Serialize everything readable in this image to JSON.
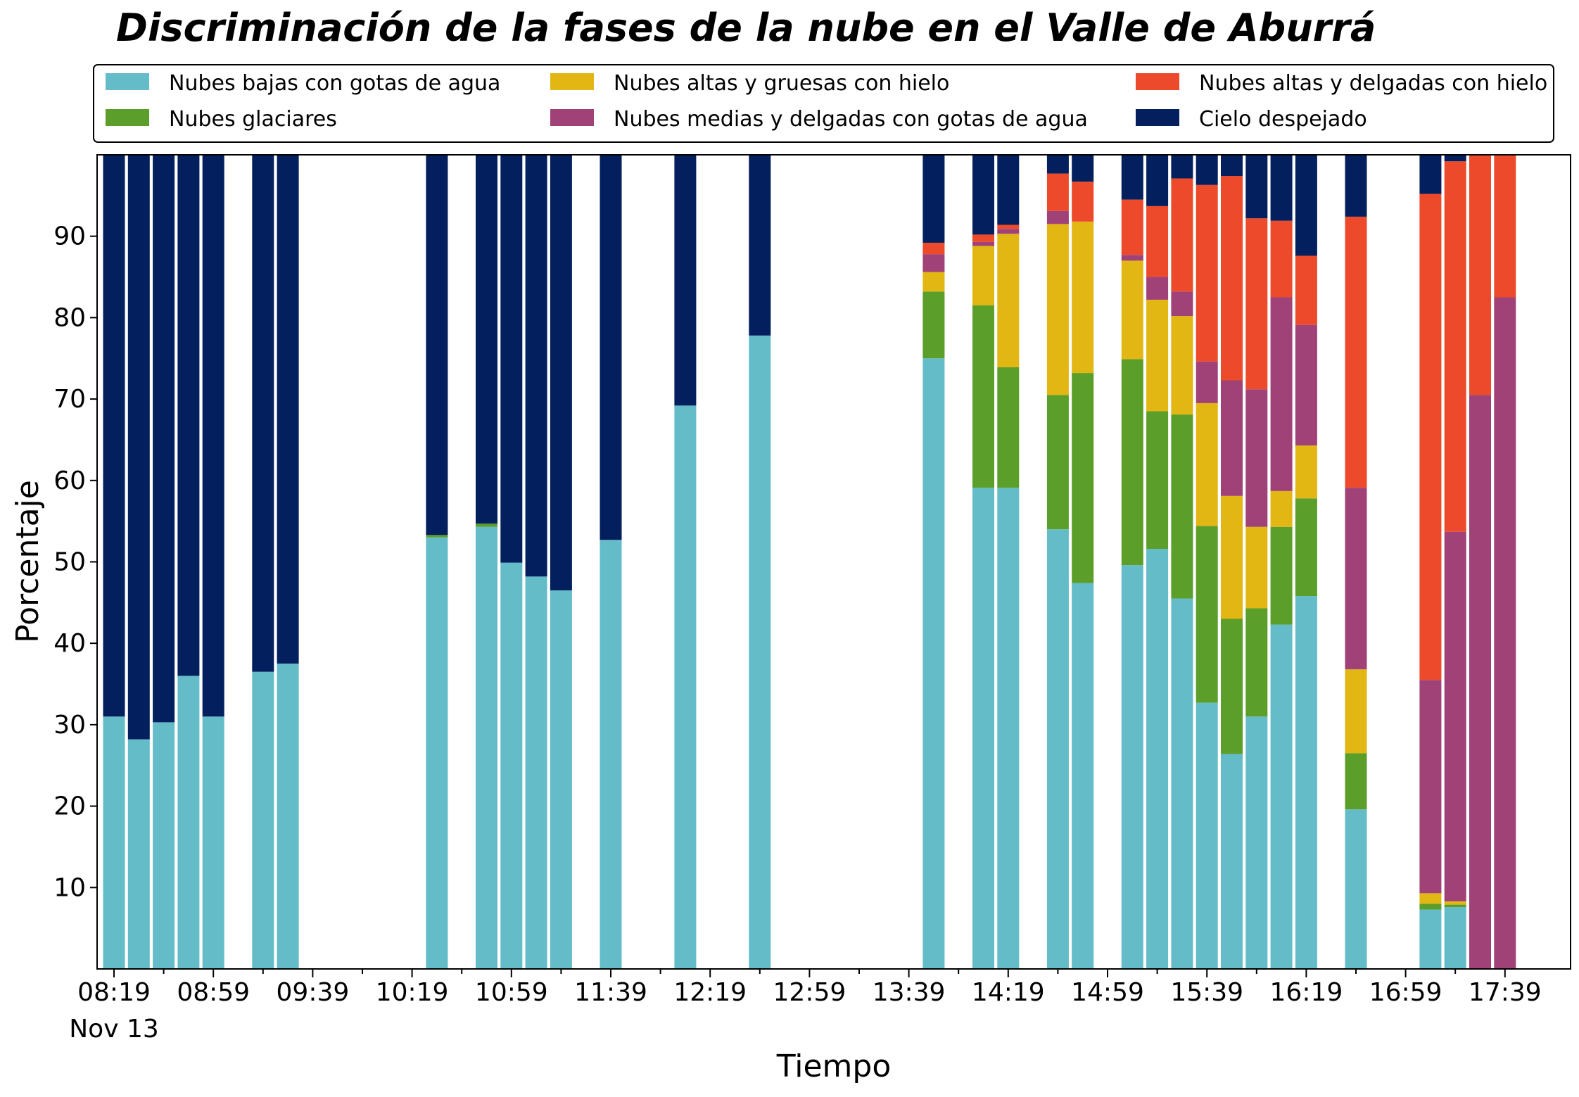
{
  "chart_data": {
    "type": "bar",
    "stacked": true,
    "title": "Discriminación de la fases de la nube en el Valle de Aburrá",
    "xlabel": "Tiempo",
    "ylabel": "Porcentaje",
    "ylim": [
      0,
      100
    ],
    "yticks": [
      10,
      20,
      30,
      40,
      50,
      60,
      70,
      80,
      90
    ],
    "x_start": "08:19",
    "bar_interval_minutes": 10,
    "x_end": "17:49",
    "xtick_labels": [
      "08:19",
      "08:59",
      "09:39",
      "10:19",
      "10:59",
      "11:39",
      "12:19",
      "12:59",
      "13:39",
      "14:19",
      "14:59",
      "15:39",
      "16:19",
      "16:59",
      "17:39"
    ],
    "date_label": "Nov 13",
    "grid": false,
    "legend_position": "top",
    "series": [
      {
        "name": "Nubes bajas con gotas de agua",
        "color": "#64bcc8"
      },
      {
        "name": "Nubes glaciares",
        "color": "#5b9e2a"
      },
      {
        "name": "Nubes altas y gruesas con hielo",
        "color": "#e2b613"
      },
      {
        "name": "Nubes medias y delgadas con gotas de agua",
        "color": "#a04278"
      },
      {
        "name": "Nubes altas y delgadas con hielo",
        "color": "#ec4a2a"
      },
      {
        "name": "Cielo despejado",
        "color": "#041f5e"
      }
    ],
    "bars": [
      {
        "time": "08:19",
        "values": [
          31,
          0,
          0,
          0,
          0,
          69
        ]
      },
      {
        "time": "08:29",
        "values": [
          28.2,
          0,
          0,
          0,
          0,
          71.8
        ]
      },
      {
        "time": "08:39",
        "values": [
          30.3,
          0,
          0,
          0,
          0,
          69.7
        ]
      },
      {
        "time": "08:49",
        "values": [
          36,
          0,
          0,
          0,
          0,
          64
        ]
      },
      {
        "time": "08:59",
        "values": [
          31,
          0,
          0,
          0,
          0,
          69
        ]
      },
      {
        "time": "09:19",
        "values": [
          36.5,
          0,
          0,
          0,
          0,
          63.5
        ]
      },
      {
        "time": "09:29",
        "values": [
          37.5,
          0,
          0,
          0,
          0,
          62.5
        ]
      },
      {
        "time": "10:29",
        "values": [
          53,
          0.3,
          0,
          0,
          0,
          46.7
        ]
      },
      {
        "time": "10:49",
        "values": [
          54.3,
          0.4,
          0,
          0,
          0,
          45.3
        ]
      },
      {
        "time": "10:59",
        "values": [
          49.9,
          0,
          0,
          0,
          0,
          50.1
        ]
      },
      {
        "time": "11:09",
        "values": [
          48.2,
          0,
          0,
          0,
          0,
          51.8
        ]
      },
      {
        "time": "11:19",
        "values": [
          46.5,
          0,
          0,
          0,
          0,
          53.5
        ]
      },
      {
        "time": "11:39",
        "values": [
          52.7,
          0,
          0,
          0,
          0,
          47.3
        ]
      },
      {
        "time": "12:09",
        "values": [
          69.2,
          0,
          0,
          0,
          0,
          30.8
        ]
      },
      {
        "time": "12:39",
        "values": [
          77.8,
          0,
          0,
          0,
          0,
          22.2
        ]
      },
      {
        "time": "13:49",
        "values": [
          75,
          8.2,
          2.4,
          2.2,
          1.4,
          10.8
        ]
      },
      {
        "time": "14:09",
        "values": [
          59.1,
          22.4,
          7.3,
          0.5,
          0.9,
          9.8
        ]
      },
      {
        "time": "14:19",
        "values": [
          59.1,
          14.8,
          16.4,
          0.6,
          0.5,
          8.6
        ]
      },
      {
        "time": "14:39",
        "values": [
          54,
          16.5,
          21,
          1.6,
          4.6,
          2.3
        ]
      },
      {
        "time": "14:49",
        "values": [
          47.4,
          25.8,
          18.6,
          0,
          4.9,
          3.3
        ]
      },
      {
        "time": "15:09",
        "values": [
          49.6,
          25.3,
          12.1,
          0.7,
          6.8,
          5.5
        ]
      },
      {
        "time": "15:19",
        "values": [
          51.6,
          16.9,
          13.7,
          2.8,
          8.7,
          6.3
        ]
      },
      {
        "time": "15:29",
        "values": [
          45.5,
          22.6,
          12.1,
          3,
          13.9,
          2.9
        ]
      },
      {
        "time": "15:39",
        "values": [
          32.7,
          21.7,
          15.1,
          5.1,
          21.7,
          3.7
        ]
      },
      {
        "time": "15:49",
        "values": [
          26.4,
          16.6,
          15.1,
          14.2,
          25.1,
          2.6
        ]
      },
      {
        "time": "15:59",
        "values": [
          31,
          13.3,
          10,
          16.9,
          21,
          7.8
        ]
      },
      {
        "time": "16:09",
        "values": [
          42.3,
          12,
          4.4,
          23.8,
          9.4,
          8.1
        ]
      },
      {
        "time": "16:19",
        "values": [
          45.8,
          12,
          6.5,
          14.8,
          8.5,
          12.4
        ]
      },
      {
        "time": "16:39",
        "values": [
          19.6,
          6.9,
          10.3,
          22.3,
          33.3,
          7.6
        ]
      },
      {
        "time": "17:09",
        "values": [
          7.3,
          0.7,
          1.3,
          26.2,
          59.7,
          4.8
        ]
      },
      {
        "time": "17:19",
        "values": [
          7.6,
          0.3,
          0.4,
          45.4,
          45.5,
          0.8
        ]
      },
      {
        "time": "17:29",
        "values": [
          0,
          0,
          0,
          70.5,
          29.5,
          0
        ]
      },
      {
        "time": "17:39",
        "values": [
          0,
          0,
          0,
          82.5,
          17.5,
          0
        ]
      }
    ]
  }
}
